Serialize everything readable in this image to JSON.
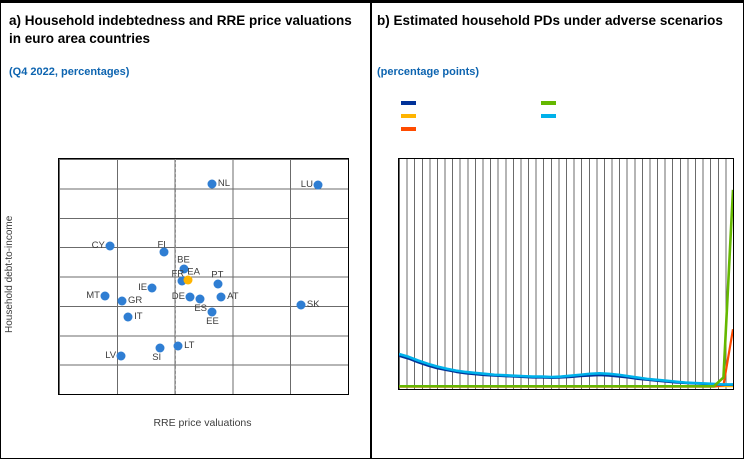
{
  "panel_a": {
    "title": "a) Household indebtedness and RRE price valuations in euro area countries",
    "subtitle": "(Q4 2022, percentages)",
    "x_axis_label": "RRE price valuations",
    "y_axis_label": "Household debt-to-income"
  },
  "panel_b": {
    "title": "b) Estimated household PDs under adverse scenarios",
    "subtitle": "(percentage points)"
  },
  "colors": {
    "subtitle_blue": "#0d64b0",
    "scatter_dot_blue": "#2f7ed3",
    "highlight_yellow": "#ffb400",
    "grid_gray": "#6b6b6b",
    "line_dark_blue": "#003299",
    "line_yellow": "#ffb400",
    "line_orange_red": "#ff4b00",
    "line_green": "#65b800",
    "line_light_blue": "#00b1ea"
  },
  "legend": {
    "entries": [
      {
        "name": "dark-blue",
        "color": "#003299",
        "column": 0,
        "row": 0
      },
      {
        "name": "yellow",
        "color": "#ffb400",
        "column": 0,
        "row": 1
      },
      {
        "name": "orange-red",
        "color": "#ff4b00",
        "column": 0,
        "row": 2
      },
      {
        "name": "green",
        "color": "#65b800",
        "column": 1,
        "row": 0
      },
      {
        "name": "light-blue",
        "color": "#00b1ea",
        "column": 1,
        "row": 1
      }
    ]
  },
  "chart_data": [
    {
      "type": "scatter",
      "title": "Household indebtedness and RRE price valuations in euro area countries",
      "subtitle": "(Q4 2022, percentages)",
      "xlabel": "RRE price valuations",
      "ylabel": "Household debt-to-income",
      "units": "percent-of-plot-area (x from left, y from top); axis tick labels not visible in image",
      "grid": "both, plus dashed vertical reference line at 40% of x-range",
      "points": [
        {
          "label": "NL",
          "x_pct": 52.9,
          "y_pct": 10.6,
          "pos": "right",
          "highlight": false
        },
        {
          "label": "LU",
          "x_pct": 89.6,
          "y_pct": 11.1,
          "pos": "left",
          "highlight": false
        },
        {
          "label": "CY",
          "x_pct": 17.6,
          "y_pct": 37.0,
          "pos": "left",
          "highlight": false
        },
        {
          "label": "FI",
          "x_pct": 36.3,
          "y_pct": 39.6,
          "pos": "above-left",
          "highlight": false
        },
        {
          "label": "BE",
          "x_pct": 43.3,
          "y_pct": 46.8,
          "pos": "above",
          "highlight": false
        },
        {
          "label": "FR",
          "x_pct": 42.6,
          "y_pct": 51.9,
          "pos": "above-left",
          "highlight": false
        },
        {
          "label": "EA",
          "x_pct": 44.6,
          "y_pct": 51.5,
          "pos": "above-right",
          "highlight": true
        },
        {
          "label": "PT",
          "x_pct": 55.0,
          "y_pct": 53.2,
          "pos": "above",
          "highlight": false
        },
        {
          "label": "IE",
          "x_pct": 32.2,
          "y_pct": 54.9,
          "pos": "left",
          "highlight": false
        },
        {
          "label": "MT",
          "x_pct": 15.9,
          "y_pct": 58.3,
          "pos": "left",
          "highlight": false
        },
        {
          "label": "DE",
          "x_pct": 45.3,
          "y_pct": 58.7,
          "pos": "left",
          "highlight": false
        },
        {
          "label": "ES",
          "x_pct": 48.8,
          "y_pct": 59.4,
          "pos": "below",
          "highlight": false
        },
        {
          "label": "AT",
          "x_pct": 56.1,
          "y_pct": 58.7,
          "pos": "right",
          "highlight": false
        },
        {
          "label": "GR",
          "x_pct": 21.8,
          "y_pct": 60.4,
          "pos": "right",
          "highlight": false
        },
        {
          "label": "IT",
          "x_pct": 23.9,
          "y_pct": 67.2,
          "pos": "right",
          "highlight": false
        },
        {
          "label": "SK",
          "x_pct": 83.7,
          "y_pct": 62.1,
          "pos": "right",
          "highlight": false
        },
        {
          "label": "EE",
          "x_pct": 52.9,
          "y_pct": 65.1,
          "pos": "below",
          "highlight": false
        },
        {
          "label": "LT",
          "x_pct": 41.2,
          "y_pct": 79.6,
          "pos": "right",
          "highlight": false
        },
        {
          "label": "SI",
          "x_pct": 34.9,
          "y_pct": 80.4,
          "pos": "below-left",
          "highlight": false
        },
        {
          "label": "LV",
          "x_pct": 21.5,
          "y_pct": 83.8,
          "pos": "left",
          "highlight": false
        }
      ]
    },
    {
      "type": "line",
      "title": "Estimated household PDs under adverse scenarios",
      "ylabel": "percentage points",
      "ylim": [
        0,
        5
      ],
      "x_range": [
        0,
        35
      ],
      "grid": "dense vertical gridlines; no visible axis tick labels",
      "legend_position": "top",
      "series": [
        {
          "name": "yellow",
          "color": "#ffb400",
          "width": 2.0,
          "values": [
            0.06,
            0.06,
            0.06,
            0.06,
            0.06,
            0.06,
            0.06,
            0.06,
            0.06,
            0.06,
            0.06,
            0.06,
            0.06,
            0.06,
            0.06,
            0.06,
            0.06,
            0.06,
            0.06,
            0.06,
            0.06,
            0.06,
            0.06,
            0.06,
            0.06,
            0.06,
            0.06,
            0.06,
            0.06,
            0.06,
            0.06,
            0.06,
            0.06,
            0.06,
            0.06,
            0.06
          ]
        },
        {
          "name": "orange-red",
          "color": "#ff4b00",
          "width": 2.2,
          "values": [
            0.05,
            0.05,
            0.05,
            0.05,
            0.05,
            0.05,
            0.05,
            0.05,
            0.05,
            0.05,
            0.05,
            0.05,
            0.05,
            0.05,
            0.05,
            0.05,
            0.05,
            0.05,
            0.05,
            0.05,
            0.05,
            0.05,
            0.05,
            0.05,
            0.05,
            0.05,
            0.05,
            0.05,
            0.05,
            0.05,
            0.05,
            0.05,
            0.05,
            0.05,
            0.08,
            1.3
          ]
        },
        {
          "name": "dark-blue",
          "color": "#003299",
          "width": 2.2,
          "values": [
            0.72,
            0.66,
            0.58,
            0.51,
            0.45,
            0.41,
            0.37,
            0.34,
            0.32,
            0.3,
            0.29,
            0.28,
            0.27,
            0.26,
            0.25,
            0.25,
            0.24,
            0.25,
            0.26,
            0.28,
            0.29,
            0.3,
            0.29,
            0.27,
            0.25,
            0.22,
            0.2,
            0.18,
            0.16,
            0.14,
            0.13,
            0.12,
            0.11,
            0.1,
            0.09,
            0.09
          ]
        },
        {
          "name": "light-blue",
          "color": "#00b1ea",
          "width": 2.6,
          "values": [
            0.76,
            0.7,
            0.62,
            0.55,
            0.49,
            0.44,
            0.4,
            0.37,
            0.35,
            0.33,
            0.31,
            0.3,
            0.29,
            0.28,
            0.27,
            0.27,
            0.26,
            0.27,
            0.29,
            0.31,
            0.33,
            0.34,
            0.33,
            0.31,
            0.28,
            0.25,
            0.22,
            0.2,
            0.18,
            0.16,
            0.14,
            0.13,
            0.12,
            0.11,
            0.1,
            0.1
          ]
        },
        {
          "name": "green",
          "color": "#65b800",
          "width": 2.6,
          "values": [
            0.06,
            0.06,
            0.06,
            0.06,
            0.06,
            0.06,
            0.06,
            0.06,
            0.06,
            0.06,
            0.06,
            0.06,
            0.06,
            0.06,
            0.06,
            0.06,
            0.06,
            0.06,
            0.06,
            0.06,
            0.06,
            0.06,
            0.06,
            0.06,
            0.06,
            0.06,
            0.06,
            0.06,
            0.06,
            0.06,
            0.06,
            0.06,
            0.06,
            0.06,
            0.25,
            4.33
          ]
        }
      ]
    }
  ]
}
